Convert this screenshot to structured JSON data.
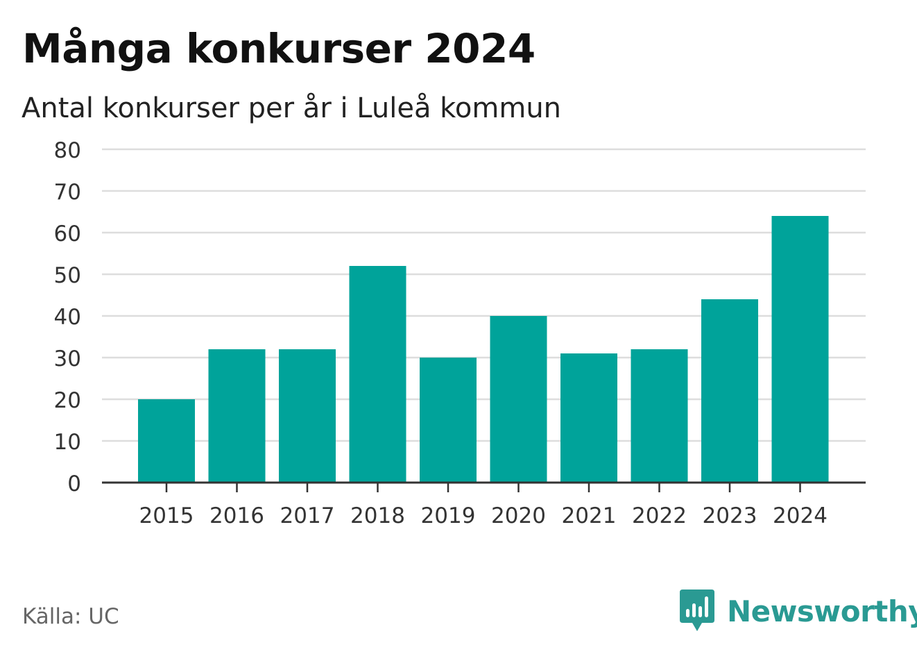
{
  "title": "Många konkurser 2024",
  "subtitle": "Antal konkurser per år i Luleå kommun",
  "source": "Källa: UC",
  "brand": "Newsworthy",
  "colors": {
    "bar": "#00a39a",
    "grid": "#dddddd",
    "axis": "#333333",
    "brand": "#2a9a93"
  },
  "icons": {
    "brand_logo": "newsworthy-bar-chart-icon"
  },
  "chart_data": {
    "type": "bar",
    "categories": [
      "2015",
      "2016",
      "2017",
      "2018",
      "2019",
      "2020",
      "2021",
      "2022",
      "2023",
      "2024"
    ],
    "values": [
      20,
      32,
      32,
      52,
      30,
      40,
      31,
      32,
      44,
      64
    ],
    "yticks": [
      0,
      10,
      20,
      30,
      40,
      50,
      60,
      70,
      80
    ],
    "ylim": [
      0,
      80
    ],
    "title": "Många konkurser 2024",
    "xlabel": "",
    "ylabel": "",
    "grid": true,
    "legend": "none"
  }
}
